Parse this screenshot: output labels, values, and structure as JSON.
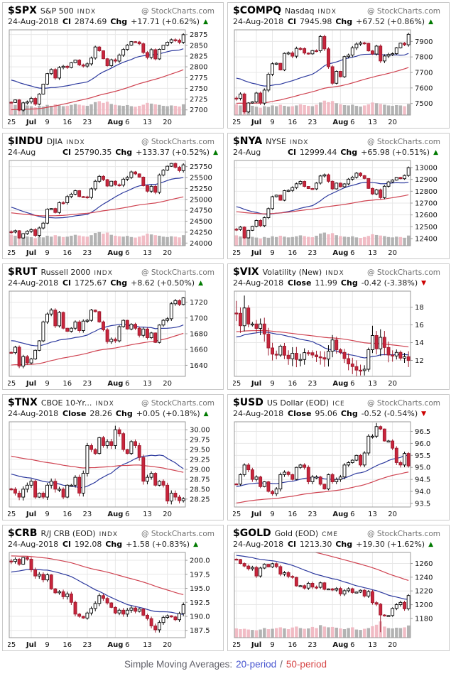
{
  "watermark": "@ StockCharts.com",
  "labels": {
    "chg": "Chg"
  },
  "icons": {
    "up": "▲",
    "down": "▼"
  },
  "footer": {
    "prefix": "Simple Moving Averages:",
    "ma20": "20-period",
    "separator": "/",
    "ma50": "50-period",
    "text_color": "#5f5f68",
    "ma20_color": "#4553cf",
    "ma50_color": "#d64545"
  },
  "colors": {
    "candle_up_fill": "#ffffff",
    "candle_up_stroke": "#000000",
    "candle_down_fill": "#c9253c",
    "candle_down_stroke": "#9c1b2e",
    "ma20": "#2d3a9e",
    "ma50": "#cf4351",
    "vol_down": "#f0b5bf",
    "vol_up": "#ababab",
    "grid": "#e7e7e7",
    "plot_border": "#999999",
    "axis_text": "#111111",
    "up_triangle": "#007a00",
    "down_triangle": "#cc0000"
  },
  "x_ticks": [
    {
      "t": "25",
      "i": 0
    },
    {
      "t": "Jul",
      "i": 5,
      "b": 1
    },
    {
      "t": "9",
      "i": 9
    },
    {
      "t": "16",
      "i": 14
    },
    {
      "t": "23",
      "i": 19
    },
    {
      "t": "Aug",
      "i": 26,
      "b": 1
    },
    {
      "t": "6",
      "i": 29
    },
    {
      "t": "13",
      "i": 34
    },
    {
      "t": "20",
      "i": 39
    }
  ],
  "x_grid": [
    0,
    5,
    9,
    14,
    19,
    24,
    26,
    29,
    34,
    39
  ],
  "chart_data": [
    {
      "type": "candlestick",
      "symbol": "$SPX",
      "name": "S&P 500",
      "exchange": "INDX",
      "date": "24-Aug-2018",
      "close_label": "Cl",
      "close": "2874.69",
      "change": "+17.71 (+0.62%)",
      "direction": "up",
      "ymin": 2688,
      "ymax": 2886,
      "y_ticks": [
        [
          2875,
          "2875"
        ],
        [
          2850,
          "2850"
        ],
        [
          2825,
          "2825"
        ],
        [
          2800,
          "2800"
        ],
        [
          2775,
          "2775"
        ],
        [
          2750,
          "2750"
        ],
        [
          2725,
          "2725"
        ],
        [
          2700,
          "2700"
        ]
      ],
      "closes": [
        2717.1,
        2723.1,
        2699.6,
        2716.3,
        2718.4,
        2726.7,
        2713.2,
        2736.6,
        2759.8,
        2784.2,
        2793.8,
        2774.0,
        2798.3,
        2801.3,
        2798.4,
        2809.6,
        2815.6,
        2804.5,
        2801.8,
        2806.9,
        2820.4,
        2846.1,
        2837.4,
        2818.8,
        2802.6,
        2816.3,
        2813.4,
        2827.2,
        2840.4,
        2850.4,
        2858.5,
        2857.7,
        2853.6,
        2833.3,
        2821.9,
        2839.9,
        2818.4,
        2840.7,
        2850.1,
        2857.1,
        2862.9,
        2861.8,
        2856.98,
        2874.69
      ],
      "volume": [
        0.62,
        0.55,
        0.78,
        0.6,
        0.52,
        0.48,
        0.42,
        0.5,
        0.46,
        0.55,
        0.5,
        0.58,
        0.52,
        0.48,
        0.5,
        0.55,
        0.6,
        0.56,
        0.52,
        0.5,
        0.58,
        0.7,
        0.75,
        0.66,
        0.72,
        0.6,
        0.55,
        0.52,
        0.5,
        0.54,
        0.48,
        0.45,
        0.5,
        0.56,
        0.66,
        0.62,
        0.58,
        0.55,
        0.5,
        0.48,
        0.52,
        0.5,
        0.46,
        0.58
      ],
      "wick": 0.012,
      "ma20_start": 2772,
      "ma50_start": 2700,
      "overrides": {}
    },
    {
      "type": "candlestick",
      "symbol": "$COMPQ",
      "name": "Nasdaq",
      "exchange": "INDX",
      "date": "24-Aug-2018",
      "close_label": "Cl",
      "close": "7945.98",
      "change": "+67.52 (+0.86%)",
      "direction": "up",
      "ymin": 7425,
      "ymax": 7975,
      "y_ticks": [
        [
          7900,
          "7900"
        ],
        [
          7800,
          "7800"
        ],
        [
          7700,
          "7700"
        ],
        [
          7600,
          "7600"
        ],
        [
          7500,
          "7500"
        ]
      ],
      "closes": [
        7532,
        7561,
        7445,
        7503,
        7510,
        7567,
        7502,
        7586,
        7688,
        7756,
        7759,
        7716,
        7823,
        7826,
        7805,
        7855,
        7854,
        7825,
        7820,
        7841,
        7840,
        7932,
        7852,
        7737,
        7630,
        7707,
        7672,
        7802,
        7812,
        7859,
        7883,
        7891,
        7888,
        7839,
        7819,
        7870,
        7774,
        7806,
        7816,
        7821,
        7859,
        7889,
        7878.46,
        7945.98
      ],
      "volume": [
        0.58,
        0.52,
        0.75,
        0.57,
        0.5,
        0.45,
        0.4,
        0.48,
        0.44,
        0.52,
        0.48,
        0.56,
        0.5,
        0.46,
        0.48,
        0.52,
        0.58,
        0.54,
        0.5,
        0.48,
        0.56,
        0.68,
        0.78,
        0.7,
        0.76,
        0.64,
        0.58,
        0.54,
        0.52,
        0.56,
        0.5,
        0.46,
        0.52,
        0.58,
        0.68,
        0.64,
        0.6,
        0.56,
        0.52,
        0.5,
        0.54,
        0.52,
        0.48,
        0.6
      ],
      "wick": 0.014,
      "ma20_start": 7670,
      "ma50_start": 7500,
      "overrides": {}
    },
    {
      "type": "candlestick",
      "symbol": "$INDU",
      "name": "DJIA",
      "exchange": "INDX",
      "date": "24-Aug",
      "close_label": "Cl",
      "close": "25790.35",
      "change": "+133.37 (+0.52%)",
      "direction": "up",
      "ymin": 23940,
      "ymax": 25890,
      "y_ticks": [
        [
          25750,
          "25750"
        ],
        [
          25500,
          "25500"
        ],
        [
          25250,
          "25250"
        ],
        [
          25000,
          "25000"
        ],
        [
          24750,
          "24750"
        ],
        [
          24500,
          "24500"
        ],
        [
          24250,
          "24250"
        ],
        [
          24000,
          "24000"
        ]
      ],
      "closes": [
        24252,
        24283,
        24117,
        24216,
        24271,
        24307,
        24175,
        24345,
        24456,
        24776,
        24790,
        24700,
        24925,
        24924,
        25064,
        25119,
        25199,
        25064,
        25058,
        25044,
        25241,
        25414,
        25527,
        25451,
        25306,
        25415,
        25334,
        25326,
        25462,
        25502,
        25628,
        25583,
        25509,
        25313,
        25187,
        25299,
        25162,
        25558,
        25669,
        25758,
        25822,
        25734,
        25656.98,
        25790.35
      ],
      "volume": [
        0.6,
        0.54,
        0.76,
        0.58,
        0.5,
        0.46,
        0.41,
        0.49,
        0.45,
        0.54,
        0.49,
        0.57,
        0.51,
        0.47,
        0.49,
        0.54,
        0.59,
        0.55,
        0.51,
        0.49,
        0.57,
        0.69,
        0.74,
        0.65,
        0.71,
        0.59,
        0.54,
        0.51,
        0.49,
        0.53,
        0.47,
        0.44,
        0.49,
        0.55,
        0.65,
        0.61,
        0.57,
        0.54,
        0.49,
        0.47,
        0.51,
        0.49,
        0.45,
        0.57
      ],
      "wick": 0.012,
      "ma20_start": 24850,
      "ma50_start": 24700,
      "overrides": {}
    },
    {
      "type": "candlestick",
      "symbol": "$NYA",
      "name": "NYSE",
      "exchange": "INDX",
      "date": "24-Aug",
      "close_label": "Cl",
      "close": "12999.44",
      "change": "+65.98 (+0.51%)",
      "direction": "up",
      "ymin": 12340,
      "ymax": 13060,
      "y_ticks": [
        [
          13000,
          "13000"
        ],
        [
          12900,
          "12900"
        ],
        [
          12800,
          "12800"
        ],
        [
          12700,
          "12700"
        ],
        [
          12600,
          "12600"
        ],
        [
          12500,
          "12500"
        ],
        [
          12400,
          "12400"
        ]
      ],
      "closes": [
        12477,
        12497,
        12406,
        12470,
        12504,
        12553,
        12509,
        12577,
        12653,
        12754,
        12767,
        12724,
        12805,
        12807,
        12831,
        12863,
        12883,
        12841,
        12823,
        12820,
        12869,
        12929,
        12939,
        12884,
        12820,
        12869,
        12838,
        12862,
        12902,
        12919,
        12953,
        12932,
        12908,
        12824,
        12777,
        12812,
        12746,
        12842,
        12879,
        12894,
        12917,
        12906,
        12933.46,
        12999.44
      ],
      "volume": [
        0.56,
        0.5,
        0.72,
        0.55,
        0.48,
        0.44,
        0.39,
        0.47,
        0.43,
        0.51,
        0.47,
        0.54,
        0.49,
        0.45,
        0.47,
        0.51,
        0.56,
        0.52,
        0.48,
        0.46,
        0.54,
        0.66,
        0.71,
        0.62,
        0.68,
        0.57,
        0.52,
        0.49,
        0.47,
        0.51,
        0.45,
        0.42,
        0.47,
        0.53,
        0.62,
        0.58,
        0.55,
        0.52,
        0.47,
        0.45,
        0.49,
        0.47,
        0.43,
        0.55
      ],
      "wick": 0.01,
      "ma20_start": 12680,
      "ma50_start": 12630,
      "overrides": {}
    },
    {
      "type": "candlestick",
      "symbol": "$RUT",
      "name": "Russell 2000",
      "exchange": "INDX",
      "date": "24-Aug-2018",
      "close_label": "Cl",
      "close": "1725.67",
      "change": "+8.62 (+0.50%)",
      "direction": "up",
      "ymin": 1626,
      "ymax": 1734,
      "y_ticks": [
        [
          1720,
          "1720"
        ],
        [
          1700,
          "1700"
        ],
        [
          1680,
          "1680"
        ],
        [
          1660,
          "1660"
        ],
        [
          1640,
          "1640"
        ]
      ],
      "closes": [
        1656,
        1663,
        1639,
        1651,
        1643,
        1648,
        1659,
        1671,
        1695,
        1705,
        1710,
        1690,
        1707,
        1687,
        1683,
        1687,
        1695,
        1684,
        1696,
        1697,
        1710,
        1708,
        1695,
        1685,
        1670,
        1673,
        1671,
        1689,
        1697,
        1686,
        1692,
        1687,
        1678,
        1686,
        1675,
        1681,
        1669,
        1691,
        1697,
        1699,
        1718,
        1722,
        1717.05,
        1725.67
      ],
      "volume": null,
      "wick": 0.014,
      "ma20_start": 1672,
      "ma50_start": 1640,
      "overrides": {}
    },
    {
      "type": "candlestick",
      "symbol": "$VIX",
      "name": "Volatility (New)",
      "exchange": "INDX",
      "date": "24-Aug-2018",
      "close_label": "Close",
      "close": "11.99",
      "change": "-0.42 (-3.38%)",
      "direction": "down",
      "ymin": 10.2,
      "ymax": 19.8,
      "y_ticks": [
        [
          18,
          "18"
        ],
        [
          16,
          "16"
        ],
        [
          14,
          "14"
        ],
        [
          12,
          "12"
        ]
      ],
      "closes": [
        17.3,
        15.9,
        17.9,
        16.1,
        16.1,
        15.6,
        16.1,
        14.97,
        13.4,
        12.7,
        12.6,
        13.6,
        12.58,
        12.18,
        12.8,
        12.1,
        12.1,
        12.87,
        12.86,
        12.6,
        12.4,
        12.3,
        12.14,
        13.03,
        14.3,
        13.2,
        12.9,
        12.2,
        11.6,
        11.3,
        10.9,
        10.85,
        11.0,
        13.2,
        14.8,
        13.3,
        14.6,
        13.45,
        12.6,
        12.5,
        12.9,
        12.25,
        12.41,
        11.99
      ],
      "volume": null,
      "wick": 0.05,
      "ma20_start": 14.5,
      "ma50_start": 15.2,
      "overrides": {
        "0": {
          "h": 18.7
        },
        "2": {
          "h": 19.3
        },
        "31": {
          "l": 10.3
        },
        "34": {
          "h": 15.9
        },
        "36": {
          "h": 15.5
        }
      }
    },
    {
      "type": "candlestick",
      "symbol": "$TNX",
      "name": "CBOE 10-Yr...",
      "exchange": "INDX",
      "date": "24-Aug-2018",
      "close_label": "Close",
      "close": "28.26",
      "change": "+0.05 (+0.18%)",
      "direction": "up",
      "ymin": 28.05,
      "ymax": 30.2,
      "y_ticks": [
        [
          30.0,
          "30.00"
        ],
        [
          29.75,
          "29.75"
        ],
        [
          29.5,
          "29.50"
        ],
        [
          29.25,
          "29.25"
        ],
        [
          29.0,
          "29.00"
        ],
        [
          28.75,
          "28.75"
        ],
        [
          28.5,
          "28.50"
        ],
        [
          28.25,
          "28.25"
        ]
      ],
      "closes": [
        28.5,
        28.4,
        28.3,
        28.5,
        28.6,
        28.7,
        28.3,
        28.4,
        28.3,
        28.6,
        28.7,
        28.5,
        28.5,
        28.3,
        28.6,
        28.6,
        28.8,
        28.4,
        28.9,
        29.6,
        29.5,
        29.4,
        29.8,
        29.6,
        29.7,
        29.6,
        30.0,
        29.9,
        29.5,
        29.4,
        29.7,
        29.6,
        29.3,
        28.7,
        28.8,
        28.9,
        28.6,
        28.7,
        28.6,
        28.2,
        28.4,
        28.3,
        28.21,
        28.26
      ],
      "volume": null,
      "wick": 0.022,
      "ma20_start": 28.9,
      "ma50_start": 29.35,
      "overrides": {
        "26": {
          "h": 30.1
        }
      }
    },
    {
      "type": "candlestick",
      "symbol": "$USD",
      "name": "US Dollar (EOD)",
      "exchange": "ICE",
      "date": "24-Aug-2018",
      "close_label": "Close",
      "close": "95.06",
      "change": "-0.52 (-0.54%)",
      "direction": "down",
      "ymin": 93.35,
      "ymax": 96.9,
      "y_ticks": [
        [
          96.5,
          "96.5"
        ],
        [
          96.0,
          "96.0"
        ],
        [
          95.5,
          "95.5"
        ],
        [
          95.0,
          "95.0"
        ],
        [
          94.5,
          "94.5"
        ],
        [
          94.0,
          "94.0"
        ],
        [
          93.5,
          "93.5"
        ]
      ],
      "closes": [
        94.3,
        94.7,
        95.1,
        94.9,
        94.5,
        94.6,
        94.2,
        94.4,
        94.0,
        93.9,
        94.1,
        94.7,
        94.8,
        94.7,
        94.5,
        95.0,
        95.1,
        95.0,
        94.4,
        94.6,
        94.6,
        94.3,
        94.1,
        94.7,
        94.4,
        94.5,
        94.6,
        95.1,
        95.2,
        95.3,
        95.5,
        95.1,
        95.6,
        96.3,
        96.3,
        96.7,
        96.6,
        96.1,
        96.1,
        95.8,
        95.2,
        95.1,
        95.58,
        95.06
      ],
      "volume": null,
      "wick": 0.016,
      "ma20_start": 94.2,
      "ma50_start": 93.5,
      "overrides": {
        "35": {
          "h": 96.85
        }
      }
    },
    {
      "type": "candlestick",
      "symbol": "$CRB",
      "name": "R/J CRB (EOD)",
      "exchange": "INDX",
      "date": "24-Aug-2018",
      "close_label": "Cl",
      "close": "192.08",
      "change": "+1.58 (+0.83%)",
      "direction": "up",
      "ymin": 186.2,
      "ymax": 201.4,
      "y_ticks": [
        [
          200.0,
          "200.0"
        ],
        [
          197.5,
          "197.5"
        ],
        [
          195.0,
          "195.0"
        ],
        [
          192.5,
          "192.5"
        ],
        [
          190.0,
          "190.0"
        ],
        [
          187.5,
          "187.5"
        ]
      ],
      "closes": [
        199.8,
        200.2,
        199.3,
        200.5,
        200.2,
        198.3,
        197.2,
        197.5,
        196.5,
        197.4,
        194.9,
        194.2,
        194.4,
        193.5,
        194.0,
        192.5,
        190.4,
        190.0,
        189.7,
        190.6,
        191.4,
        192.3,
        193.7,
        193.2,
        192.4,
        191.6,
        190.6,
        191.1,
        190.4,
        191.1,
        191.5,
        190.9,
        191.3,
        190.2,
        189.6,
        188.3,
        187.6,
        188.9,
        189.8,
        190.1,
        189.9,
        189.4,
        190.5,
        192.08
      ],
      "volume": null,
      "wick": 0.018,
      "ma20_start": 197.8,
      "ma50_start": 200.8,
      "overrides": {}
    },
    {
      "type": "candlestick",
      "symbol": "$GOLD",
      "name": "Gold (EOD)",
      "exchange": "CME",
      "date": "24-Aug-2018",
      "close_label": "Cl",
      "close": "1213.30",
      "change": "+19.30 (+1.62%)",
      "direction": "up",
      "ymin": 1152,
      "ymax": 1276,
      "y_ticks": [
        [
          1260,
          "1260"
        ],
        [
          1240,
          "1240"
        ],
        [
          1220,
          "1220"
        ],
        [
          1200,
          "1200"
        ],
        [
          1180,
          "1180"
        ]
      ],
      "closes": [
        1265.8,
        1259.9,
        1256.2,
        1252.3,
        1254.2,
        1241.7,
        1253.3,
        1258.8,
        1255.0,
        1259.6,
        1255.4,
        1244.4,
        1246.6,
        1241.2,
        1239.7,
        1227.3,
        1227.6,
        1224.1,
        1231.1,
        1225.6,
        1225.3,
        1231.8,
        1222.3,
        1223.0,
        1221.3,
        1223.6,
        1215.6,
        1220.3,
        1223.2,
        1217.7,
        1218.3,
        1221.0,
        1212.6,
        1219.0,
        1202.9,
        1200.7,
        1185.0,
        1184.0,
        1184.2,
        1194.6,
        1200.1,
        1203.3,
        1194.0,
        1213.3
      ],
      "volume": [
        0.5,
        0.46,
        0.48,
        0.44,
        0.42,
        0.4,
        0.44,
        0.52,
        0.46,
        0.48,
        0.52,
        0.56,
        0.5,
        0.46,
        0.55,
        0.6,
        0.52,
        0.48,
        0.5,
        0.58,
        0.52,
        0.68,
        0.6,
        0.56,
        0.58,
        0.54,
        0.5,
        0.46,
        0.52,
        0.56,
        0.44,
        0.42,
        0.48,
        0.52,
        0.62,
        0.7,
        0.88,
        0.6,
        0.52,
        0.5,
        0.54,
        0.52,
        0.56,
        0.66
      ],
      "wick": 0.013,
      "ma20_start": 1272,
      "ma50_start": 1298,
      "overrides": {
        "36": {
          "l": 1160
        }
      }
    }
  ]
}
